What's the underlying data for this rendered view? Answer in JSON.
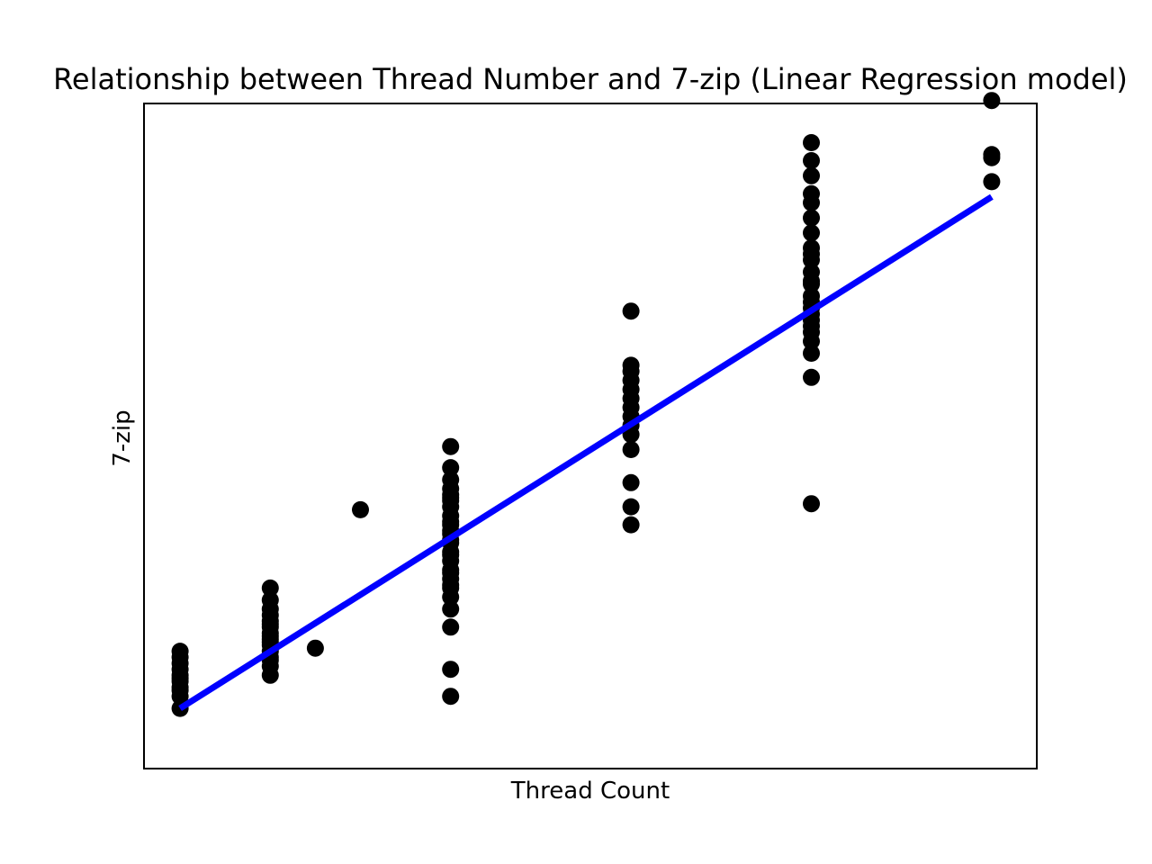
{
  "chart_data": {
    "type": "scatter",
    "title": "Relationship between Thread Number and 7-zip (Linear Regression model)",
    "xlabel": "Thread Count",
    "ylabel": "7-zip",
    "xlim": [
      1.1,
      11.0
    ],
    "ylim": [
      -2.1,
      20.0
    ],
    "grid": false,
    "legend": "none",
    "colors": {
      "points": "#000000",
      "regression_line": "#0000ff",
      "axes": "#000000"
    },
    "series": [
      {
        "type": "scatter",
        "x": [
          1.5,
          1.5,
          1.5,
          1.5,
          1.5,
          1.5,
          1.5,
          1.5,
          1.5,
          1.5,
          1.5,
          2.5,
          2.5,
          2.5,
          2.5,
          2.5,
          2.5,
          2.5,
          2.5,
          2.5,
          2.5,
          2.5,
          2.5,
          2.5,
          2.5,
          2.5,
          2.5,
          2.5,
          3.0,
          3.5,
          4.5,
          4.5,
          4.5,
          4.5,
          4.5,
          4.5,
          4.5,
          4.5,
          4.5,
          4.5,
          4.5,
          4.5,
          4.5,
          4.5,
          4.5,
          4.5,
          4.5,
          4.5,
          4.5,
          4.5,
          4.5,
          4.5,
          4.5,
          4.5,
          4.5,
          4.5,
          4.5,
          4.5,
          6.5,
          6.5,
          6.5,
          6.5,
          6.5,
          6.5,
          6.5,
          6.5,
          6.5,
          6.5,
          6.5,
          6.5,
          6.5,
          6.5,
          8.5,
          8.5,
          8.5,
          8.5,
          8.5,
          8.5,
          8.5,
          8.5,
          8.5,
          8.5,
          8.5,
          8.5,
          8.5,
          8.5,
          8.5,
          8.5,
          8.5,
          8.5,
          8.5,
          8.5,
          8.5,
          8.5,
          8.5,
          8.5,
          10.5,
          10.5,
          10.5,
          10.5
        ],
        "y": [
          -0.1,
          0.3,
          0.6,
          0.8,
          1.0,
          1.2,
          1.4,
          1.6,
          1.8,
          0.9,
          0.5,
          1.0,
          1.3,
          1.6,
          1.8,
          2.0,
          2.2,
          2.4,
          2.6,
          2.8,
          3.0,
          3.2,
          3.5,
          3.9,
          2.3,
          1.5,
          2.1,
          2.7,
          1.9,
          6.5,
          0.3,
          1.2,
          2.6,
          3.2,
          3.6,
          3.9,
          4.2,
          4.5,
          4.8,
          5.1,
          5.4,
          5.7,
          6.0,
          6.3,
          6.6,
          6.9,
          7.2,
          7.5,
          7.9,
          8.6,
          5.0,
          5.8,
          6.8,
          4.4,
          4.0,
          6.1,
          7.0,
          5.5,
          6.0,
          6.6,
          7.4,
          8.5,
          9.0,
          9.3,
          9.6,
          9.9,
          10.2,
          10.5,
          10.8,
          11.1,
          11.3,
          13.1,
          6.7,
          10.9,
          11.7,
          12.1,
          12.4,
          12.8,
          13.2,
          13.6,
          14.0,
          14.4,
          14.8,
          15.2,
          15.7,
          16.2,
          16.7,
          17.0,
          17.6,
          18.1,
          18.7,
          13.0,
          14.1,
          15.0,
          13.4,
          12.6,
          17.4,
          18.2,
          18.3,
          20.1
        ]
      },
      {
        "type": "line",
        "name": "",
        "x": [
          1.5,
          10.5
        ],
        "y": [
          -0.1,
          16.9
        ]
      }
    ]
  }
}
